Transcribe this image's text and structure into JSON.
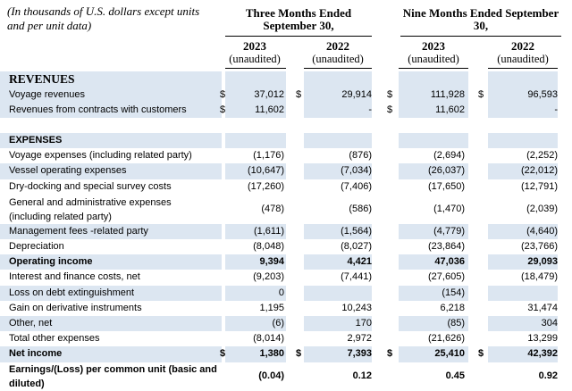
{
  "header": {
    "note": "(In thousands of U.S. dollars except units and per unit data)",
    "periods": [
      {
        "title": "Three Months Ended September 30,",
        "years": [
          {
            "year": "2023",
            "status": "(unaudited)"
          },
          {
            "year": "2022",
            "status": "(unaudited)"
          }
        ]
      },
      {
        "title": "Nine Months Ended September 30,",
        "years": [
          {
            "year": "2023",
            "status": "(unaudited)"
          },
          {
            "year": "2022",
            "status": "(unaudited)"
          }
        ]
      }
    ]
  },
  "rows": [
    {
      "type": "section",
      "label": "REVENUES"
    },
    {
      "type": "line",
      "label": "Voyage revenues",
      "cur": [
        "$",
        "$",
        "$",
        "$"
      ],
      "values": [
        "37,012",
        "29,914",
        "111,928",
        "96,593"
      ]
    },
    {
      "type": "line",
      "label": "Revenues from contracts with customers",
      "cur": [
        "$",
        "",
        "$",
        ""
      ],
      "values": [
        "11,602",
        "-",
        "11,602",
        "-"
      ]
    },
    {
      "type": "section",
      "label": "EXPENSES"
    },
    {
      "type": "line",
      "label": "Voyage expenses (including related party)",
      "values": [
        "(1,176)",
        "(876)",
        "(2,694)",
        "(2,252)"
      ]
    },
    {
      "type": "line",
      "label": "Vessel operating expenses",
      "values": [
        "(10,647)",
        "(7,034)",
        "(26,037)",
        "(22,012)"
      ]
    },
    {
      "type": "line",
      "label": "Dry-docking and special survey costs",
      "values": [
        "(17,260)",
        "(7,406)",
        "(17,650)",
        "(12,791)"
      ]
    },
    {
      "type": "line",
      "lines": [
        "General and administrative expenses",
        "(including related party)"
      ],
      "values": [
        "(478)",
        "(586)",
        "(1,470)",
        "(2,039)"
      ]
    },
    {
      "type": "line",
      "label": "Management fees -related party",
      "values": [
        "(1,611)",
        "(1,564)",
        "(4,779)",
        "(4,640)"
      ]
    },
    {
      "type": "line",
      "label": "Depreciation",
      "values": [
        "(8,048)",
        "(8,027)",
        "(23,864)",
        "(23,766)"
      ]
    },
    {
      "type": "line",
      "bold": true,
      "label": "Operating income",
      "values": [
        "9,394",
        "4,421",
        "47,036",
        "29,093"
      ]
    },
    {
      "type": "line",
      "label": "Interest and finance costs, net",
      "values": [
        "(9,203)",
        "(7,441)",
        "(27,605)",
        "(18,479)"
      ]
    },
    {
      "type": "line",
      "label": "Loss on debt extinguishment",
      "values": [
        "0",
        "",
        "(154)",
        ""
      ]
    },
    {
      "type": "line",
      "label": "Gain on derivative instruments",
      "values": [
        "1,195",
        "10,243",
        "6,218",
        "31,474"
      ]
    },
    {
      "type": "line",
      "label": "Other, net",
      "values": [
        "(6)",
        "170",
        "(85)",
        "304"
      ]
    },
    {
      "type": "line",
      "label": "Total other expenses",
      "values": [
        "(8,014)",
        "2,972",
        "(21,626)",
        "13,299"
      ]
    },
    {
      "type": "line",
      "bold": true,
      "label": "Net income",
      "cur": [
        "$",
        "$",
        "$",
        "$"
      ],
      "values": [
        "1,380",
        "7,393",
        "25,410",
        "42,392"
      ]
    },
    {
      "type": "line",
      "bold": true,
      "lines": [
        "Earnings/(Loss) per common unit (basic and",
        "diluted)"
      ],
      "values": [
        "(0.04)",
        "0.12",
        "0.45",
        "0.92"
      ]
    }
  ]
}
